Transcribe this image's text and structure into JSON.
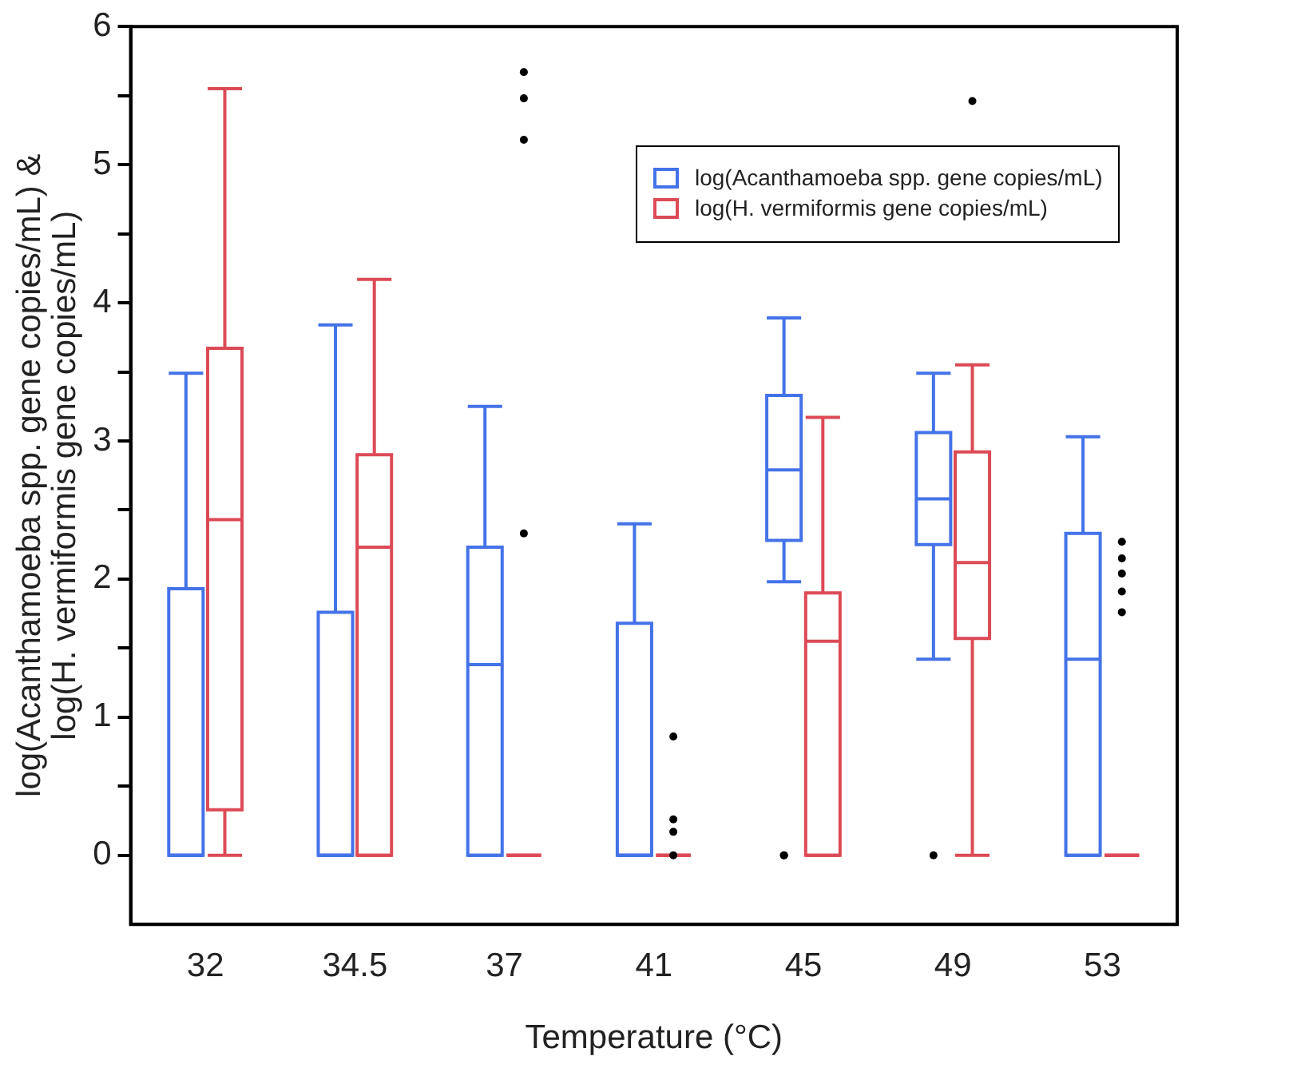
{
  "chart_data": {
    "type": "box",
    "xlabel": "Temperature (°C)",
    "ylabel": "log(Acanthamoeba spp. gene copies/mL) &\nlog(H. vermiformis gene copies/mL)",
    "categories": [
      "32",
      "34.5",
      "37",
      "41",
      "45",
      "49",
      "53"
    ],
    "ylim": [
      -0.5,
      6
    ],
    "yticks": [
      0,
      {
        "value": 0.5,
        "label": null
      },
      1,
      {
        "value": 1.5,
        "label": null
      },
      2,
      {
        "value": 2.5,
        "label": null
      },
      3,
      {
        "value": 3.5,
        "label": null
      },
      4,
      {
        "value": 4.5,
        "label": null
      },
      5,
      {
        "value": 5.5,
        "label": null
      },
      6
    ],
    "grid": false,
    "legend": "top right",
    "series": [
      {
        "name": "log(Acanthamoeba spp. gene copies/mL)",
        "color": "#4472e8",
        "boxes": [
          {
            "low": 0,
            "q1": 0,
            "median": 0,
            "q3": 1.93,
            "high": 3.49
          },
          {
            "low": 0,
            "q1": 0,
            "median": 0,
            "q3": 1.76,
            "high": 3.84
          },
          {
            "low": 0,
            "q1": 0,
            "median": 1.38,
            "q3": 2.23,
            "high": 3.25
          },
          {
            "low": 0,
            "q1": 0,
            "median": 0,
            "q3": 1.68,
            "high": 2.4
          },
          {
            "low": 1.98,
            "q1": 2.28,
            "median": 2.79,
            "q3": 3.33,
            "high": 3.89,
            "outliers": [
              0,
              0
            ]
          },
          {
            "low": 1.42,
            "q1": 2.25,
            "median": 2.58,
            "q3": 3.06,
            "high": 3.49,
            "outliers": [
              0
            ]
          },
          {
            "low": 0,
            "q1": 0,
            "median": 1.42,
            "q3": 2.33,
            "high": 3.03
          }
        ]
      },
      {
        "name": "log(H. vermiformis gene copies/mL)",
        "color": "#dc4a56",
        "boxes": [
          {
            "low": 0,
            "q1": 0.33,
            "median": 2.43,
            "q3": 3.67,
            "high": 5.55
          },
          {
            "low": 0,
            "q1": 0,
            "median": 2.23,
            "q3": 2.9,
            "high": 4.17
          },
          {
            "low": 0,
            "q1": 0,
            "median": 0,
            "q3": 0,
            "high": 0,
            "outliers": [
              5.67,
              5.48,
              5.18,
              2.33
            ]
          },
          {
            "low": 0,
            "q1": 0,
            "median": 0,
            "q3": 0,
            "high": 0,
            "outliers": [
              0.86,
              0.26,
              0.17,
              0
            ]
          },
          {
            "low": 0,
            "q1": 0,
            "median": 1.55,
            "q3": 1.9,
            "high": 3.17
          },
          {
            "low": 0,
            "q1": 1.57,
            "median": 2.12,
            "q3": 2.92,
            "high": 3.55,
            "outliers": [
              5.46
            ]
          },
          {
            "low": 0,
            "q1": 0,
            "median": 0,
            "q3": 0,
            "high": 0,
            "outliers": [
              2.27,
              2.15,
              2.04,
              1.91,
              1.76
            ]
          }
        ]
      }
    ]
  }
}
